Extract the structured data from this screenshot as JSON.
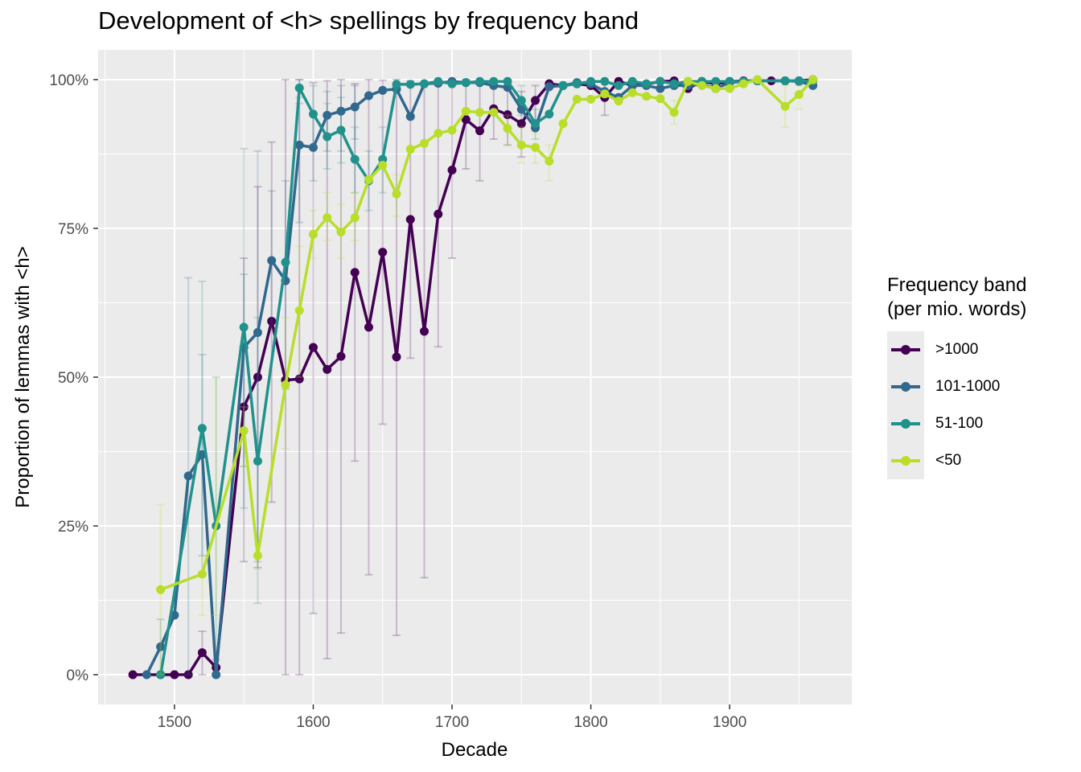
{
  "chart_data": {
    "type": "line",
    "title": "Development of <h> spellings by frequency band",
    "xlabel": "Decade",
    "ylabel": "Proportion of lemmas with <h>",
    "xlim": [
      1445,
      1988
    ],
    "ylim": [
      -0.05,
      1.05
    ],
    "x_ticks": [
      1500,
      1600,
      1700,
      1800,
      1900
    ],
    "y_ticks": [
      0,
      0.25,
      0.5,
      0.75,
      1.0
    ],
    "y_tick_labels": [
      "0%",
      "25%",
      "50%",
      "75%",
      "100%"
    ],
    "grid": true,
    "legend": {
      "title_line1": "Frequency band",
      "title_line2": "(per mio. words)",
      "placement": "right"
    },
    "series": [
      {
        "name": ">1000",
        "color": "#440154",
        "points": [
          [
            1470,
            0
          ],
          [
            1490,
            0
          ],
          [
            1500,
            0
          ],
          [
            1510,
            0
          ],
          [
            1520,
            0.037
          ],
          [
            1530,
            0.012
          ],
          [
            1550,
            0.45
          ],
          [
            1560,
            0.5
          ],
          [
            1570,
            0.594
          ],
          [
            1580,
            0.495
          ],
          [
            1590,
            0.497
          ],
          [
            1600,
            0.55
          ],
          [
            1610,
            0.513
          ],
          [
            1620,
            0.535
          ],
          [
            1630,
            0.676
          ],
          [
            1640,
            0.584
          ],
          [
            1650,
            0.71
          ],
          [
            1660,
            0.534
          ],
          [
            1670,
            0.765
          ],
          [
            1680,
            0.577
          ],
          [
            1690,
            0.774
          ],
          [
            1700,
            0.848
          ],
          [
            1710,
            0.933
          ],
          [
            1720,
            0.914
          ],
          [
            1730,
            0.951
          ],
          [
            1740,
            0.941
          ],
          [
            1750,
            0.926
          ],
          [
            1760,
            0.965
          ],
          [
            1770,
            0.993
          ],
          [
            1780,
            0.99
          ],
          [
            1790,
            0.993
          ],
          [
            1800,
            0.99
          ],
          [
            1810,
            0.97
          ],
          [
            1820,
            0.997
          ],
          [
            1830,
            0.99
          ],
          [
            1840,
            0.992
          ],
          [
            1850,
            0.997
          ],
          [
            1860,
            0.998
          ],
          [
            1870,
            0.985
          ],
          [
            1880,
            0.997
          ],
          [
            1890,
            0.993
          ],
          [
            1900,
            0.997
          ],
          [
            1910,
            0.998
          ],
          [
            1920,
            0.998
          ],
          [
            1930,
            0.998
          ],
          [
            1940,
            0.998
          ],
          [
            1950,
            0.998
          ],
          [
            1960,
            1.0
          ]
        ],
        "errors": [
          [
            1520,
            0,
            0.073
          ],
          [
            1530,
            0,
            0.025
          ],
          [
            1550,
            0.19,
            0.7
          ],
          [
            1560,
            0.18,
            0.82
          ],
          [
            1570,
            0.29,
            0.895
          ],
          [
            1580,
            0,
            1.0
          ],
          [
            1590,
            0,
            1.0
          ],
          [
            1600,
            0.103,
            0.995
          ],
          [
            1610,
            0.027,
            0.998
          ],
          [
            1620,
            0.07,
            1.0
          ],
          [
            1630,
            0.359,
            0.993
          ],
          [
            1640,
            0.168,
            1.0
          ],
          [
            1650,
            0.421,
            0.999
          ],
          [
            1660,
            0.066,
            1.0
          ],
          [
            1670,
            0.532,
            0.998
          ],
          [
            1680,
            0.163,
            0.99
          ],
          [
            1690,
            0.551,
            0.997
          ],
          [
            1700,
            0.7,
            0.995
          ],
          [
            1710,
            0.85,
            1.0
          ],
          [
            1720,
            0.83,
            0.998
          ],
          [
            1730,
            0.9,
            0.99
          ],
          [
            1740,
            0.89,
            0.99
          ],
          [
            1750,
            0.87,
            0.98
          ],
          [
            1760,
            0.93,
            0.99
          ],
          [
            1810,
            0.94,
            1.0
          ]
        ]
      },
      {
        "name": "101-1000",
        "color": "#31688e",
        "points": [
          [
            1480,
            0
          ],
          [
            1490,
            0.047
          ],
          [
            1500,
            0.1
          ],
          [
            1510,
            0.334
          ],
          [
            1520,
            0.37
          ],
          [
            1530,
            0
          ],
          [
            1550,
            0.55
          ],
          [
            1560,
            0.575
          ],
          [
            1570,
            0.696
          ],
          [
            1580,
            0.662
          ],
          [
            1590,
            0.89
          ],
          [
            1600,
            0.886
          ],
          [
            1610,
            0.94
          ],
          [
            1620,
            0.947
          ],
          [
            1630,
            0.954
          ],
          [
            1640,
            0.973
          ],
          [
            1650,
            0.982
          ],
          [
            1660,
            0.984
          ],
          [
            1670,
            0.938
          ],
          [
            1680,
            0.993
          ],
          [
            1690,
            0.994
          ],
          [
            1700,
            0.997
          ],
          [
            1710,
            0.995
          ],
          [
            1720,
            0.995
          ],
          [
            1730,
            0.99
          ],
          [
            1740,
            0.987
          ],
          [
            1750,
            0.95
          ],
          [
            1760,
            0.919
          ],
          [
            1770,
            0.988
          ],
          [
            1780,
            0.99
          ],
          [
            1790,
            0.995
          ],
          [
            1800,
            0.993
          ],
          [
            1810,
            0.98
          ],
          [
            1820,
            0.97
          ],
          [
            1830,
            0.99
          ],
          [
            1840,
            0.99
          ],
          [
            1850,
            0.985
          ],
          [
            1860,
            0.99
          ],
          [
            1870,
            0.99
          ],
          [
            1880,
            0.992
          ],
          [
            1890,
            0.985
          ],
          [
            1900,
            0.995
          ],
          [
            1910,
            0.997
          ],
          [
            1920,
            0.998
          ],
          [
            1940,
            0.998
          ],
          [
            1950,
            0.997
          ],
          [
            1960,
            0.99
          ]
        ],
        "errors": [
          [
            1490,
            0,
            0.093
          ],
          [
            1510,
            0,
            0.667
          ],
          [
            1520,
            0.2,
            0.538
          ],
          [
            1550,
            0.35,
            0.673
          ],
          [
            1560,
            0.19,
            0.88
          ],
          [
            1570,
            0.58,
            0.813
          ],
          [
            1580,
            0.48,
            0.83
          ],
          [
            1590,
            0.76,
            0.96
          ],
          [
            1600,
            0.83,
            0.94
          ],
          [
            1610,
            0.88,
            0.98
          ],
          [
            1620,
            0.88,
            0.99
          ],
          [
            1630,
            0.9,
            0.99
          ]
        ]
      },
      {
        "name": "51-100",
        "color": "#21918c",
        "points": [
          [
            1490,
            0
          ],
          [
            1520,
            0.414
          ],
          [
            1530,
            0.25
          ],
          [
            1550,
            0.584
          ],
          [
            1560,
            0.359
          ],
          [
            1580,
            0.693
          ],
          [
            1590,
            0.986
          ],
          [
            1600,
            0.942
          ],
          [
            1610,
            0.904
          ],
          [
            1620,
            0.915
          ],
          [
            1630,
            0.866
          ],
          [
            1640,
            0.83
          ],
          [
            1650,
            0.866
          ],
          [
            1660,
            0.992
          ],
          [
            1670,
            0.992
          ],
          [
            1680,
            0.993
          ],
          [
            1690,
            0.997
          ],
          [
            1700,
            0.993
          ],
          [
            1710,
            0.995
          ],
          [
            1720,
            0.997
          ],
          [
            1730,
            0.997
          ],
          [
            1740,
            0.997
          ],
          [
            1750,
            0.965
          ],
          [
            1760,
            0.926
          ],
          [
            1770,
            0.942
          ],
          [
            1780,
            0.99
          ],
          [
            1790,
            0.993
          ],
          [
            1800,
            0.997
          ],
          [
            1810,
            0.997
          ],
          [
            1820,
            0.99
          ],
          [
            1830,
            0.997
          ],
          [
            1840,
            0.993
          ],
          [
            1850,
            0.997
          ],
          [
            1860,
            0.993
          ],
          [
            1870,
            0.997
          ],
          [
            1880,
            0.997
          ],
          [
            1890,
            0.997
          ],
          [
            1900,
            0.997
          ],
          [
            1910,
            0.997
          ],
          [
            1920,
            0.998
          ],
          [
            1940,
            0.998
          ],
          [
            1950,
            0.998
          ],
          [
            1960,
            0.998
          ]
        ],
        "errors": [
          [
            1520,
            0.17,
            0.661
          ],
          [
            1530,
            0,
            0.5
          ],
          [
            1550,
            0.28,
            0.884
          ],
          [
            1560,
            0.12,
            0.6
          ],
          [
            1590,
            0.97,
            1.0
          ],
          [
            1600,
            0.89,
            0.99
          ],
          [
            1610,
            0.85,
            0.96
          ],
          [
            1620,
            0.86,
            0.97
          ],
          [
            1630,
            0.81,
            0.92
          ],
          [
            1640,
            0.78,
            0.88
          ],
          [
            1650,
            0.81,
            0.92
          ],
          [
            1750,
            0.94,
            0.99
          ],
          [
            1760,
            0.9,
            0.95
          ]
        ]
      },
      {
        "name": "<50",
        "color": "#b8de29",
        "points": [
          [
            1490,
            0.143
          ],
          [
            1520,
            0.169
          ],
          [
            1550,
            0.41
          ],
          [
            1560,
            0.2
          ],
          [
            1580,
            0.487
          ],
          [
            1590,
            0.612
          ],
          [
            1600,
            0.74
          ],
          [
            1610,
            0.768
          ],
          [
            1620,
            0.744
          ],
          [
            1630,
            0.768
          ],
          [
            1640,
            0.832
          ],
          [
            1650,
            0.856
          ],
          [
            1660,
            0.808
          ],
          [
            1670,
            0.883
          ],
          [
            1680,
            0.893
          ],
          [
            1690,
            0.91
          ],
          [
            1700,
            0.915
          ],
          [
            1710,
            0.947
          ],
          [
            1720,
            0.945
          ],
          [
            1730,
            0.945
          ],
          [
            1740,
            0.918
          ],
          [
            1750,
            0.89
          ],
          [
            1760,
            0.886
          ],
          [
            1770,
            0.863
          ],
          [
            1780,
            0.926
          ],
          [
            1790,
            0.967
          ],
          [
            1800,
            0.967
          ],
          [
            1810,
            0.976
          ],
          [
            1820,
            0.964
          ],
          [
            1830,
            0.978
          ],
          [
            1840,
            0.972
          ],
          [
            1850,
            0.968
          ],
          [
            1860,
            0.945
          ],
          [
            1870,
            0.997
          ],
          [
            1880,
            0.99
          ],
          [
            1890,
            0.985
          ],
          [
            1900,
            0.985
          ],
          [
            1910,
            0.993
          ],
          [
            1920,
            1.0
          ],
          [
            1940,
            0.955
          ],
          [
            1950,
            0.975
          ],
          [
            1960,
            1.0
          ]
        ],
        "errors": [
          [
            1490,
            0,
            0.286
          ],
          [
            1520,
            0.1,
            0.2
          ],
          [
            1530,
            0.1,
            0.5
          ],
          [
            1550,
            0.35,
            0.45
          ],
          [
            1560,
            0.177,
            0.22
          ],
          [
            1580,
            0.38,
            0.6
          ],
          [
            1590,
            0.5,
            0.72
          ],
          [
            1600,
            0.7,
            0.78
          ],
          [
            1610,
            0.73,
            0.81
          ],
          [
            1620,
            0.7,
            0.79
          ],
          [
            1630,
            0.73,
            0.81
          ],
          [
            1660,
            0.77,
            0.84
          ],
          [
            1740,
            0.89,
            0.94
          ],
          [
            1750,
            0.86,
            0.92
          ],
          [
            1760,
            0.86,
            0.91
          ],
          [
            1770,
            0.83,
            0.89
          ],
          [
            1860,
            0.925,
            0.965
          ],
          [
            1940,
            0.92,
            0.99
          ],
          [
            1950,
            0.95,
            0.99
          ]
        ]
      }
    ]
  }
}
